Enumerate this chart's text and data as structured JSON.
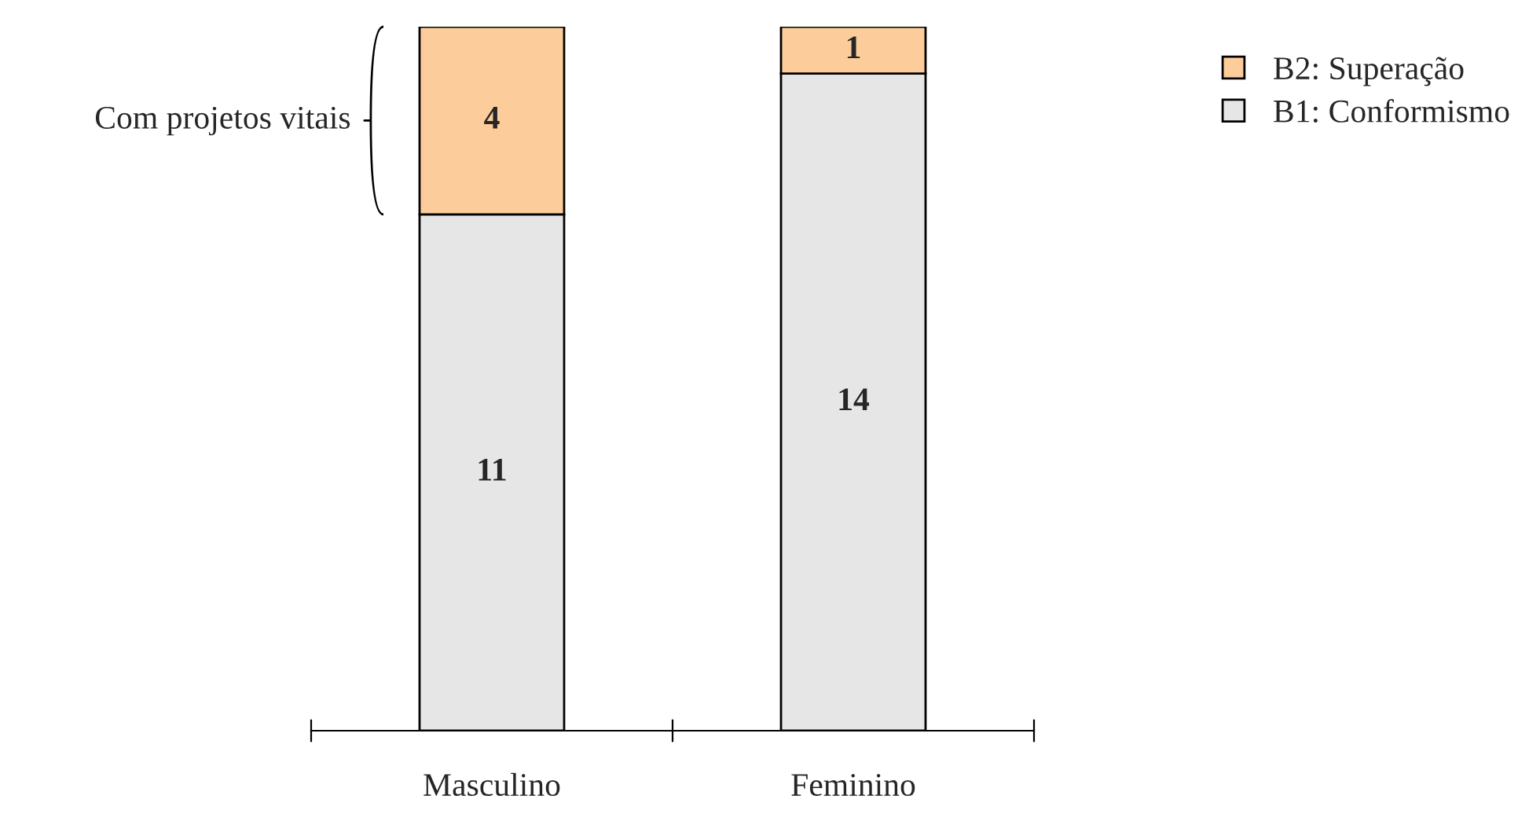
{
  "chart_data": {
    "type": "bar",
    "stacked": true,
    "categories": [
      "Masculino",
      "Feminino"
    ],
    "series": [
      {
        "name": "B1: Conformismo",
        "color": "#e6e6e6",
        "values": [
          11,
          14
        ]
      },
      {
        "name": "B2: Superação",
        "color": "#fccc9a",
        "values": [
          4,
          1
        ]
      }
    ],
    "data_labels": true,
    "legend": "top right",
    "annotations": [
      "Com projetos vitais"
    ]
  }
}
